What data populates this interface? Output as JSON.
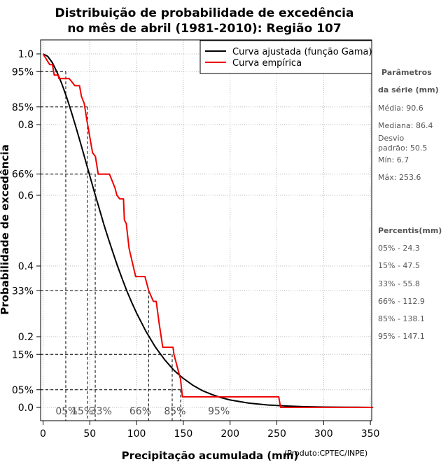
{
  "chart_data": {
    "type": "line",
    "title_line1": "Distribuição de probabilidade de excedência",
    "title_line2": "no mês de abril (1981-2010): Região 107",
    "xlabel": "Precipitação acumulada (mm)",
    "ylabel": "Probabilidade de excedência",
    "credit": "(Produto:CPTEC/INPE)",
    "xlim": [
      -4,
      355
    ],
    "ylim": [
      -0.04,
      1.04
    ],
    "x_ticks": [
      "0",
      "50",
      "100",
      "150",
      "200",
      "250",
      "300",
      "350"
    ],
    "y_ticks": [
      {
        "value": 1.0,
        "label": "1.0"
      },
      {
        "value": 0.95,
        "label": "95%"
      },
      {
        "value": 0.85,
        "label": "85%"
      },
      {
        "value": 0.8,
        "label": "0.8"
      },
      {
        "value": 0.66,
        "label": "66%"
      },
      {
        "value": 0.6,
        "label": "0.6"
      },
      {
        "value": 0.4,
        "label": "0.4"
      },
      {
        "value": 0.33,
        "label": "33%"
      },
      {
        "value": 0.2,
        "label": "0.2"
      },
      {
        "value": 0.15,
        "label": "15%"
      },
      {
        "value": 0.05,
        "label": "05%"
      },
      {
        "value": 0.0,
        "label": "0.0"
      }
    ],
    "legend": {
      "position": "top-right",
      "entries": [
        {
          "label": "Curva ajustada (função Gama)",
          "color": "#000000"
        },
        {
          "label": "Curva empírica",
          "color": "#ee0000"
        }
      ]
    },
    "series": [
      {
        "name": "Curva ajustada (função Gama)",
        "color": "#000000",
        "points": [
          [
            0,
            1.0
          ],
          [
            5,
            0.993
          ],
          [
            10,
            0.975
          ],
          [
            15,
            0.948
          ],
          [
            20,
            0.916
          ],
          [
            25,
            0.879
          ],
          [
            30,
            0.838
          ],
          [
            35,
            0.794
          ],
          [
            40,
            0.749
          ],
          [
            45,
            0.702
          ],
          [
            50,
            0.655
          ],
          [
            55,
            0.608
          ],
          [
            60,
            0.563
          ],
          [
            65,
            0.518
          ],
          [
            70,
            0.476
          ],
          [
            75,
            0.436
          ],
          [
            80,
            0.397
          ],
          [
            85,
            0.361
          ],
          [
            90,
            0.327
          ],
          [
            95,
            0.296
          ],
          [
            100,
            0.267
          ],
          [
            110,
            0.215
          ],
          [
            120,
            0.171
          ],
          [
            130,
            0.135
          ],
          [
            140,
            0.105
          ],
          [
            150,
            0.082
          ],
          [
            160,
            0.063
          ],
          [
            170,
            0.048
          ],
          [
            180,
            0.037
          ],
          [
            190,
            0.028
          ],
          [
            200,
            0.021
          ],
          [
            220,
            0.012
          ],
          [
            240,
            0.007
          ],
          [
            260,
            0.004
          ],
          [
            280,
            0.002
          ],
          [
            300,
            0.001
          ],
          [
            325,
            0.0005
          ],
          [
            353,
            0.0
          ]
        ]
      },
      {
        "name": "Curva empírica",
        "color": "#ee0000",
        "points": [
          [
            0,
            1.0
          ],
          [
            7,
            0.97
          ],
          [
            10,
            0.97
          ],
          [
            12,
            0.94
          ],
          [
            16,
            0.94
          ],
          [
            17,
            0.93
          ],
          [
            28,
            0.93
          ],
          [
            34,
            0.91
          ],
          [
            39,
            0.91
          ],
          [
            41,
            0.88
          ],
          [
            44,
            0.86
          ],
          [
            47,
            0.81
          ],
          [
            51,
            0.75
          ],
          [
            53,
            0.72
          ],
          [
            56,
            0.71
          ],
          [
            59,
            0.66
          ],
          [
            71,
            0.66
          ],
          [
            74,
            0.64
          ],
          [
            77,
            0.62
          ],
          [
            79,
            0.6
          ],
          [
            82,
            0.59
          ],
          [
            86,
            0.59
          ],
          [
            87,
            0.53
          ],
          [
            89,
            0.52
          ],
          [
            92,
            0.45
          ],
          [
            99,
            0.37
          ],
          [
            109,
            0.37
          ],
          [
            113,
            0.33
          ],
          [
            118,
            0.3
          ],
          [
            121,
            0.3
          ],
          [
            124,
            0.24
          ],
          [
            128,
            0.17
          ],
          [
            139,
            0.17
          ],
          [
            140,
            0.15
          ],
          [
            143,
            0.12
          ],
          [
            147,
            0.08
          ],
          [
            149,
            0.03
          ],
          [
            155,
            0.03
          ],
          [
            252,
            0.03
          ],
          [
            254,
            0.0
          ],
          [
            353,
            0.0
          ]
        ]
      }
    ],
    "percentile_markers": [
      {
        "label": "05%",
        "x": 24.3,
        "p": 0.95
      },
      {
        "label": "15%",
        "x": 47.5,
        "p": 0.85
      },
      {
        "label": "33%",
        "x": 55.8,
        "p": 0.66
      },
      {
        "label": "66%",
        "x": 112.9,
        "p": 0.33
      },
      {
        "label": "85%",
        "x": 138.1,
        "p": 0.15
      },
      {
        "label": "95%",
        "x": 147.1,
        "p": 0.05
      }
    ],
    "bottom_labels": [
      {
        "label": "05%",
        "x": 25
      },
      {
        "label": "15%",
        "x": 42
      },
      {
        "label": "33%",
        "x": 62
      },
      {
        "label": "66%",
        "x": 104
      },
      {
        "label": "85%",
        "x": 141
      },
      {
        "label": "95%",
        "x": 188
      }
    ]
  },
  "side_panel": {
    "params_title_1": "Parâmetros",
    "params_title_2": "da série (mm)",
    "media": "Média: 90.6",
    "mediana": "Mediana: 86.4",
    "desvio_1": "Desvio",
    "desvio_2": "padrão: 50.5",
    "min": "Mín: 6.7",
    "max": "Máx: 253.6",
    "percentis_title": "Percentis(mm)",
    "percentis": [
      "05% - 24.3",
      "15% - 47.5",
      "33% - 55.8",
      "66% - 112.9",
      "85% - 138.1",
      "95% - 147.1"
    ]
  }
}
